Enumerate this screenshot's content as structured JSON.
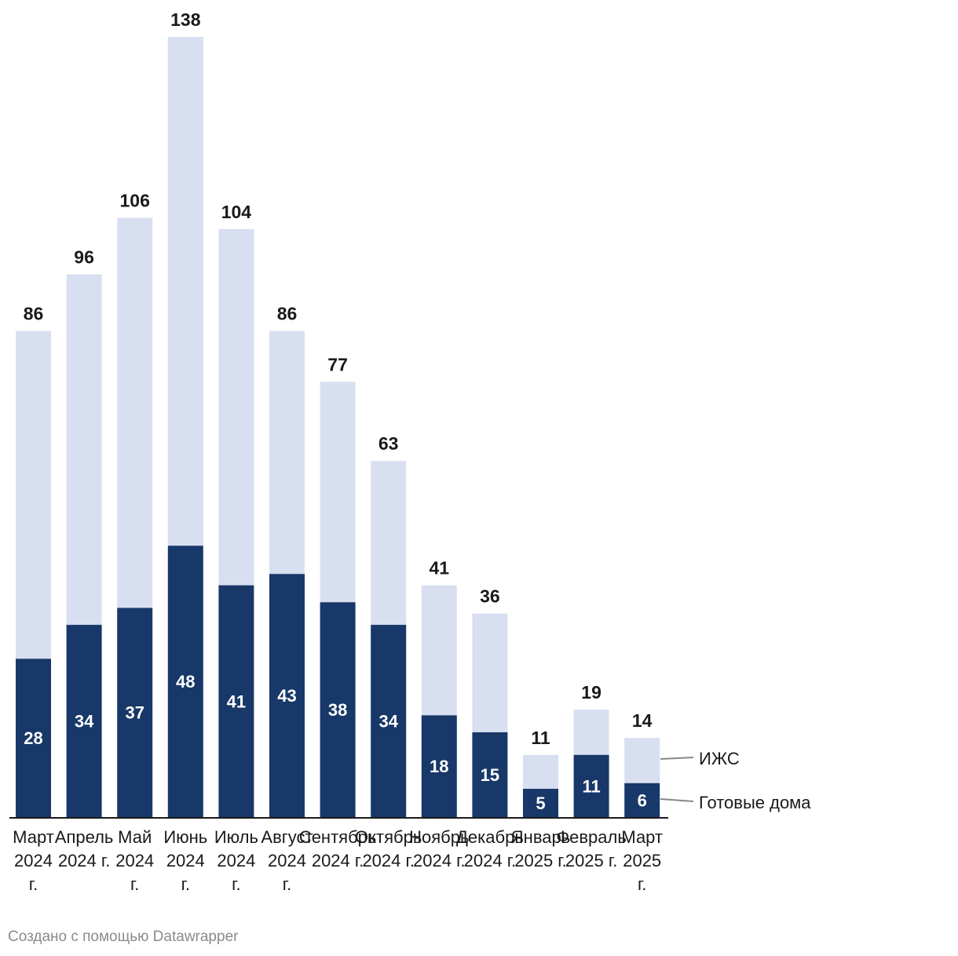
{
  "chart_data": {
    "type": "bar",
    "stacked": true,
    "categories": [
      [
        "Март",
        "2024",
        "г."
      ],
      [
        "Апрель",
        "2024 г."
      ],
      [
        "Май",
        "2024",
        "г."
      ],
      [
        "Июнь",
        "2024",
        "г."
      ],
      [
        "Июль",
        "2024",
        "г."
      ],
      [
        "Август",
        "2024",
        "г."
      ],
      [
        "Сентябрь",
        "2024 г."
      ],
      [
        "Октябрь",
        "2024 г."
      ],
      [
        "Ноябрь",
        "2024 г."
      ],
      [
        "Декабрь",
        "2024 г."
      ],
      [
        "Январь",
        "2025 г."
      ],
      [
        "Февраль",
        "2025 г."
      ],
      [
        "Март",
        "2025",
        "г."
      ]
    ],
    "series": [
      {
        "name": "Готовые дома",
        "color": "#173868",
        "values": [
          28,
          34,
          37,
          48,
          41,
          43,
          38,
          34,
          18,
          15,
          5,
          11,
          6
        ]
      },
      {
        "name": "ИЖС",
        "color": "#d8dff0",
        "values": [
          58,
          62,
          69,
          90,
          63,
          43,
          39,
          29,
          23,
          21,
          6,
          8,
          8
        ]
      }
    ],
    "totals": [
      86,
      96,
      106,
      138,
      104,
      86,
      77,
      63,
      41,
      36,
      11,
      19,
      14
    ],
    "ylim": [
      0,
      138
    ],
    "grid": false,
    "legend": "right, inline labels",
    "credit": "Создано с помощью Datawrapper"
  }
}
